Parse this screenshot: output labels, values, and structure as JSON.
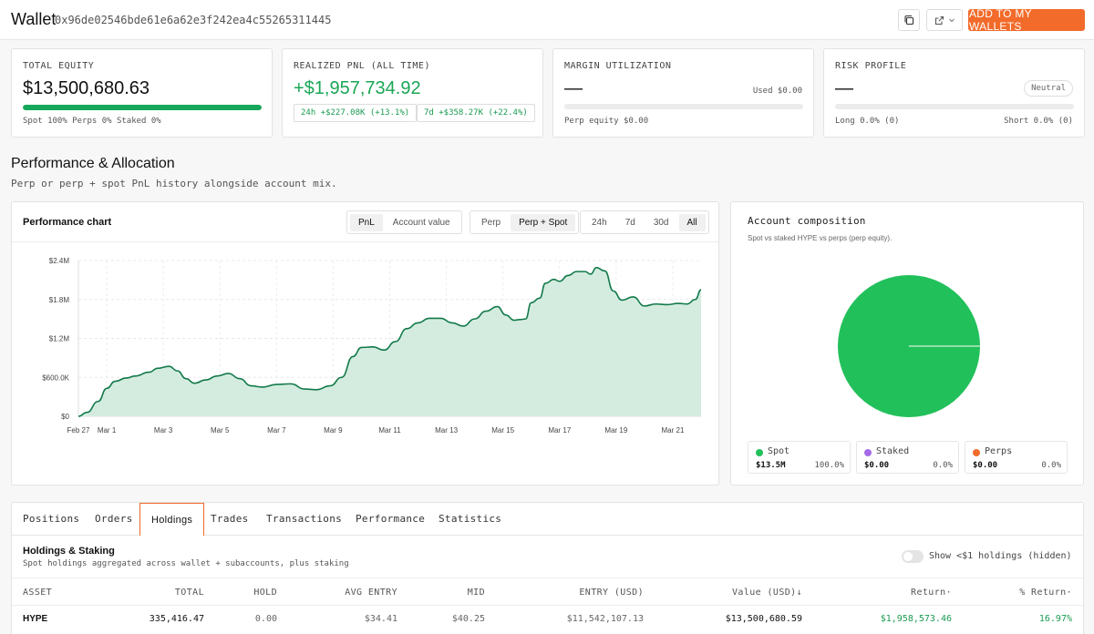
{
  "header": {
    "title": "Wallet",
    "address": "0x96de02546bde61e6a62e3f242ea4c55265311445",
    "add_label": "ADD TO MY WALLETS"
  },
  "cards": {
    "equity": {
      "label": "TOTAL EQUITY",
      "value": "$13,500,680.63",
      "fill": 1.0,
      "breakdown": "Spot 100%  Perps 0%  Staked 0%"
    },
    "pnl": {
      "label": "REALIZED PNL (ALL TIME)",
      "value": "+$1,957,734.92",
      "pill_24h": "24h +$227.08K (+13.1%)",
      "pill_7d": "7d +$358.27K (+22.4%)"
    },
    "margin": {
      "label": "MARGIN UTILIZATION",
      "value": "—",
      "used": "Used $0.00",
      "fill": 0.0,
      "perp_equity": "Perp equity $0.00"
    },
    "risk": {
      "label": "RISK PROFILE",
      "value": "—",
      "badge": "Neutral",
      "fill": 0.0,
      "long": "Long 0.0% (0)",
      "short": "Short 0.0% (0)"
    }
  },
  "section": {
    "title": "Performance & Allocation",
    "subtitle": "Perp or perp + spot PnL history alongside account mix."
  },
  "chart_panel": {
    "title": "Performance chart",
    "metric_tabs": [
      "PnL",
      "Account value"
    ],
    "scope_tabs": [
      "Perp",
      "Perp + Spot"
    ],
    "range_tabs": [
      "24h",
      "7d",
      "30d",
      "All"
    ],
    "active_metric": "PnL",
    "active_scope": "Perp + Spot",
    "active_range": "All"
  },
  "chart_data": {
    "type": "area",
    "title": "",
    "xlabel": "",
    "ylabel": "",
    "x_ticks": [
      "Feb 27",
      "Mar 1",
      "Mar 3",
      "Mar 5",
      "Mar 7",
      "Mar 9",
      "Mar 11",
      "Mar 13",
      "Mar 15",
      "Mar 17",
      "Mar 19",
      "Mar 21"
    ],
    "y_ticks": [
      "$0",
      "$600.0K",
      "$1.2M",
      "$1.8M",
      "$2.4M"
    ],
    "ylim": [
      0,
      2400000
    ],
    "xlim": [
      0,
      22
    ],
    "grid": true,
    "color": "#137a4a",
    "fill_color": "#d4ece0",
    "points": [
      [
        0,
        0
      ],
      [
        0.3,
        60000
      ],
      [
        0.7,
        230000
      ],
      [
        1.0,
        430000
      ],
      [
        1.3,
        540000
      ],
      [
        1.7,
        590000
      ],
      [
        2.0,
        620000
      ],
      [
        2.5,
        680000
      ],
      [
        2.8,
        740000
      ],
      [
        3.2,
        770000
      ],
      [
        3.5,
        700000
      ],
      [
        3.8,
        580000
      ],
      [
        4.1,
        510000
      ],
      [
        4.5,
        560000
      ],
      [
        4.9,
        620000
      ],
      [
        5.3,
        660000
      ],
      [
        5.7,
        580000
      ],
      [
        6.1,
        470000
      ],
      [
        6.5,
        450000
      ],
      [
        7.0,
        490000
      ],
      [
        7.5,
        500000
      ],
      [
        8.0,
        420000
      ],
      [
        8.4,
        410000
      ],
      [
        8.9,
        470000
      ],
      [
        9.3,
        600000
      ],
      [
        9.7,
        920000
      ],
      [
        10.0,
        1060000
      ],
      [
        10.4,
        1070000
      ],
      [
        10.8,
        1020000
      ],
      [
        11.2,
        1150000
      ],
      [
        11.6,
        1350000
      ],
      [
        12.0,
        1440000
      ],
      [
        12.4,
        1510000
      ],
      [
        12.8,
        1510000
      ],
      [
        13.2,
        1440000
      ],
      [
        13.6,
        1390000
      ],
      [
        14.0,
        1500000
      ],
      [
        14.4,
        1620000
      ],
      [
        14.8,
        1690000
      ],
      [
        15.1,
        1560000
      ],
      [
        15.4,
        1480000
      ],
      [
        15.6,
        1490000
      ],
      [
        15.8,
        1500000
      ],
      [
        16.0,
        1750000
      ],
      [
        16.3,
        1820000
      ],
      [
        16.5,
        2050000
      ],
      [
        16.8,
        2110000
      ],
      [
        17.0,
        2080000
      ],
      [
        17.3,
        2170000
      ],
      [
        17.6,
        2230000
      ],
      [
        17.9,
        2230000
      ],
      [
        18.1,
        2190000
      ],
      [
        18.3,
        2290000
      ],
      [
        18.6,
        2240000
      ],
      [
        18.9,
        1930000
      ],
      [
        19.2,
        1790000
      ],
      [
        19.6,
        1840000
      ],
      [
        20.0,
        1700000
      ],
      [
        20.4,
        1730000
      ],
      [
        20.8,
        1720000
      ],
      [
        21.2,
        1740000
      ],
      [
        21.5,
        1730000
      ],
      [
        21.8,
        1800000
      ],
      [
        22.0,
        1950000
      ]
    ]
  },
  "composition": {
    "title": "Account composition",
    "subtitle": "Spot vs staked HYPE vs perps (perp equity).",
    "legend": [
      {
        "name": "Spot",
        "amount": "$13.5M",
        "pct": "100.0%",
        "color": "#22c05a"
      },
      {
        "name": "Staked",
        "amount": "$0.00",
        "pct": "0.0%",
        "color": "#a56ae8"
      },
      {
        "name": "Perps",
        "amount": "$0.00",
        "pct": "0.0%",
        "color": "#f26b2a"
      }
    ],
    "pie_values": [
      13500680.63,
      0,
      0
    ]
  },
  "tabs": [
    "Positions",
    "Orders",
    "Holdings",
    "Trades",
    "Transactions",
    "Performance",
    "Statistics"
  ],
  "holdings": {
    "title": "Holdings & Staking",
    "subtitle": "Spot holdings aggregated across wallet + subaccounts, plus staking",
    "toggle_label": "Show <$1 holdings (hidden)",
    "columns": [
      "ASSET",
      "TOTAL",
      "HOLD",
      "AVG ENTRY",
      "MID",
      "ENTRY (USD)",
      "Value (USD)↓",
      "Return·",
      "% Return·"
    ],
    "rows": [
      {
        "asset": "HYPE",
        "total": "335,416.47",
        "hold": "0.00",
        "avg_entry": "$34.41",
        "mid": "$40.25",
        "entry_usd": "$11,542,107.13",
        "value_usd": "$13,500,680.59",
        "return": "$1,958,573.46",
        "pct_return": "16.97%"
      }
    ]
  },
  "colors": {
    "accent": "#f26b2a",
    "positive": "#1aa655",
    "spot": "#22c05a"
  }
}
